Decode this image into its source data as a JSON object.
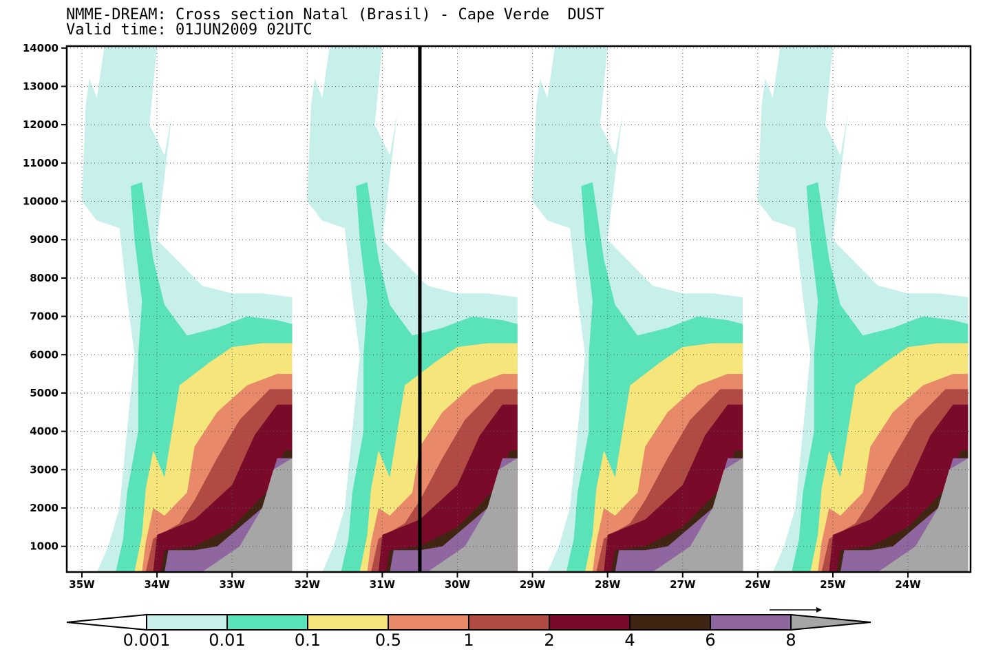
{
  "title_line1": "NMME-DREAM: Cross section Natal (Brasil) - Cape Verde  DUST",
  "title_line2": "Valid time: 01JUN2009 02UTC",
  "chart_data": {
    "type": "heatmap",
    "title": "NMME-DREAM: Cross section Natal (Brasil) - Cape Verde  DUST",
    "subtitle": "Valid time: 01JUN2009 02UTC",
    "xlabel": "",
    "ylabel": "",
    "x_ticks": [
      "35W",
      "34W",
      "33W",
      "32W",
      "31W",
      "30W",
      "29W",
      "28W",
      "27W",
      "26W",
      "25W",
      "24W"
    ],
    "y_ticks": [
      1000,
      2000,
      3000,
      4000,
      5000,
      6000,
      7000,
      8000,
      9000,
      10000,
      11000,
      12000,
      13000,
      14000
    ],
    "ylim": [
      330,
      14050
    ],
    "grid": true,
    "vertical_marker_x": "30.5W",
    "colorbar": {
      "labels": [
        "0.001",
        "0.01",
        "0.1",
        "0.5",
        "1",
        "2",
        "4",
        "6",
        "8"
      ],
      "colors": [
        "#c8f0eb",
        "#5ae2b9",
        "#f5e57a",
        "#e8896a",
        "#b04a42",
        "#7a0a2a",
        "#3f2512",
        "#8f66a0",
        "#a6a6a6"
      ]
    },
    "dust_contours": [
      {
        "level": "0.001",
        "color": "#c8f0eb",
        "points": [
          [
            -34.8,
            330
          ],
          [
            -34.65,
            1000
          ],
          [
            -34.5,
            2000
          ],
          [
            -34.4,
            4000
          ],
          [
            -34.3,
            6000
          ],
          [
            -34.4,
            7500
          ],
          [
            -34.5,
            9300
          ],
          [
            -34.8,
            9500
          ],
          [
            -35.0,
            10000
          ],
          [
            -34.95,
            12500
          ],
          [
            -34.9,
            13200
          ],
          [
            -34.8,
            12700
          ],
          [
            -34.7,
            14050
          ],
          [
            -34.0,
            14050
          ],
          [
            -34.1,
            12000
          ],
          [
            -33.9,
            11200
          ],
          [
            -33.8,
            12300
          ],
          [
            -34.0,
            9000
          ],
          [
            -33.8,
            8600
          ],
          [
            -33.4,
            7800
          ],
          [
            -33.0,
            7600
          ],
          [
            -32.6,
            7600
          ],
          [
            -32.2,
            7500
          ],
          [
            -32.2,
            330
          ]
        ]
      },
      {
        "level": "0.01",
        "color": "#5ae2b9",
        "points": [
          [
            -34.55,
            330
          ],
          [
            -34.45,
            1200
          ],
          [
            -34.4,
            2400
          ],
          [
            -34.25,
            4000
          ],
          [
            -34.25,
            6000
          ],
          [
            -34.2,
            7400
          ],
          [
            -34.3,
            9000
          ],
          [
            -34.35,
            10400
          ],
          [
            -34.2,
            10500
          ],
          [
            -34.05,
            8500
          ],
          [
            -33.9,
            7300
          ],
          [
            -33.6,
            6500
          ],
          [
            -33.2,
            6700
          ],
          [
            -32.8,
            7000
          ],
          [
            -32.4,
            6900
          ],
          [
            -32.2,
            6800
          ],
          [
            -32.2,
            330
          ]
        ]
      },
      {
        "level": "0.1",
        "color": "#f5e57a",
        "points": [
          [
            -34.3,
            330
          ],
          [
            -34.2,
            1300
          ],
          [
            -34.15,
            2500
          ],
          [
            -34.05,
            3500
          ],
          [
            -33.9,
            2800
          ],
          [
            -33.8,
            4000
          ],
          [
            -33.7,
            5200
          ],
          [
            -33.3,
            5800
          ],
          [
            -33.0,
            6200
          ],
          [
            -32.6,
            6300
          ],
          [
            -32.2,
            6300
          ],
          [
            -32.2,
            330
          ]
        ]
      },
      {
        "level": "0.5",
        "color": "#e8896a",
        "points": [
          [
            -34.2,
            330
          ],
          [
            -34.15,
            1100
          ],
          [
            -34.05,
            2000
          ],
          [
            -33.9,
            1800
          ],
          [
            -33.6,
            2400
          ],
          [
            -33.5,
            3600
          ],
          [
            -33.2,
            4500
          ],
          [
            -32.8,
            5200
          ],
          [
            -32.4,
            5500
          ],
          [
            -32.2,
            5500
          ],
          [
            -32.2,
            330
          ]
        ]
      },
      {
        "level": "1",
        "color": "#b04a42",
        "points": [
          [
            -34.15,
            330
          ],
          [
            -34.05,
            1200
          ],
          [
            -33.7,
            1600
          ],
          [
            -33.5,
            2200
          ],
          [
            -33.2,
            3300
          ],
          [
            -32.9,
            4300
          ],
          [
            -32.5,
            5100
          ],
          [
            -32.2,
            5100
          ],
          [
            -32.2,
            330
          ]
        ]
      },
      {
        "level": "2",
        "color": "#7a0a2a",
        "points": [
          [
            -34.05,
            330
          ],
          [
            -34.0,
            1300
          ],
          [
            -33.5,
            1700
          ],
          [
            -33.0,
            2600
          ],
          [
            -32.7,
            3900
          ],
          [
            -32.4,
            4700
          ],
          [
            -32.2,
            4700
          ],
          [
            -32.2,
            330
          ]
        ]
      },
      {
        "level": "4",
        "color": "#3f2512",
        "points": [
          [
            -33.95,
            330
          ],
          [
            -33.9,
            900
          ],
          [
            -33.5,
            1000
          ],
          [
            -33.0,
            1500
          ],
          [
            -32.5,
            2500
          ],
          [
            -32.3,
            3500
          ],
          [
            -32.2,
            3500
          ],
          [
            -32.2,
            330
          ]
        ]
      },
      {
        "level": "6",
        "color": "#8f66a0",
        "points": [
          [
            -33.9,
            330
          ],
          [
            -33.85,
            900
          ],
          [
            -33.5,
            900
          ],
          [
            -33.2,
            1000
          ],
          [
            -32.6,
            2000
          ],
          [
            -32.4,
            3300
          ],
          [
            -32.2,
            3300
          ],
          [
            -32.2,
            330
          ]
        ]
      },
      {
        "level": "8",
        "color": "#a6a6a6",
        "points": [
          [
            -33.4,
            330
          ],
          [
            -32.9,
            1000
          ],
          [
            -32.6,
            2000
          ],
          [
            -32.45,
            3000
          ],
          [
            -32.2,
            3300
          ],
          [
            -32.2,
            330
          ]
        ]
      }
    ],
    "dust_contour_repeats_every_x_deg": 3
  }
}
